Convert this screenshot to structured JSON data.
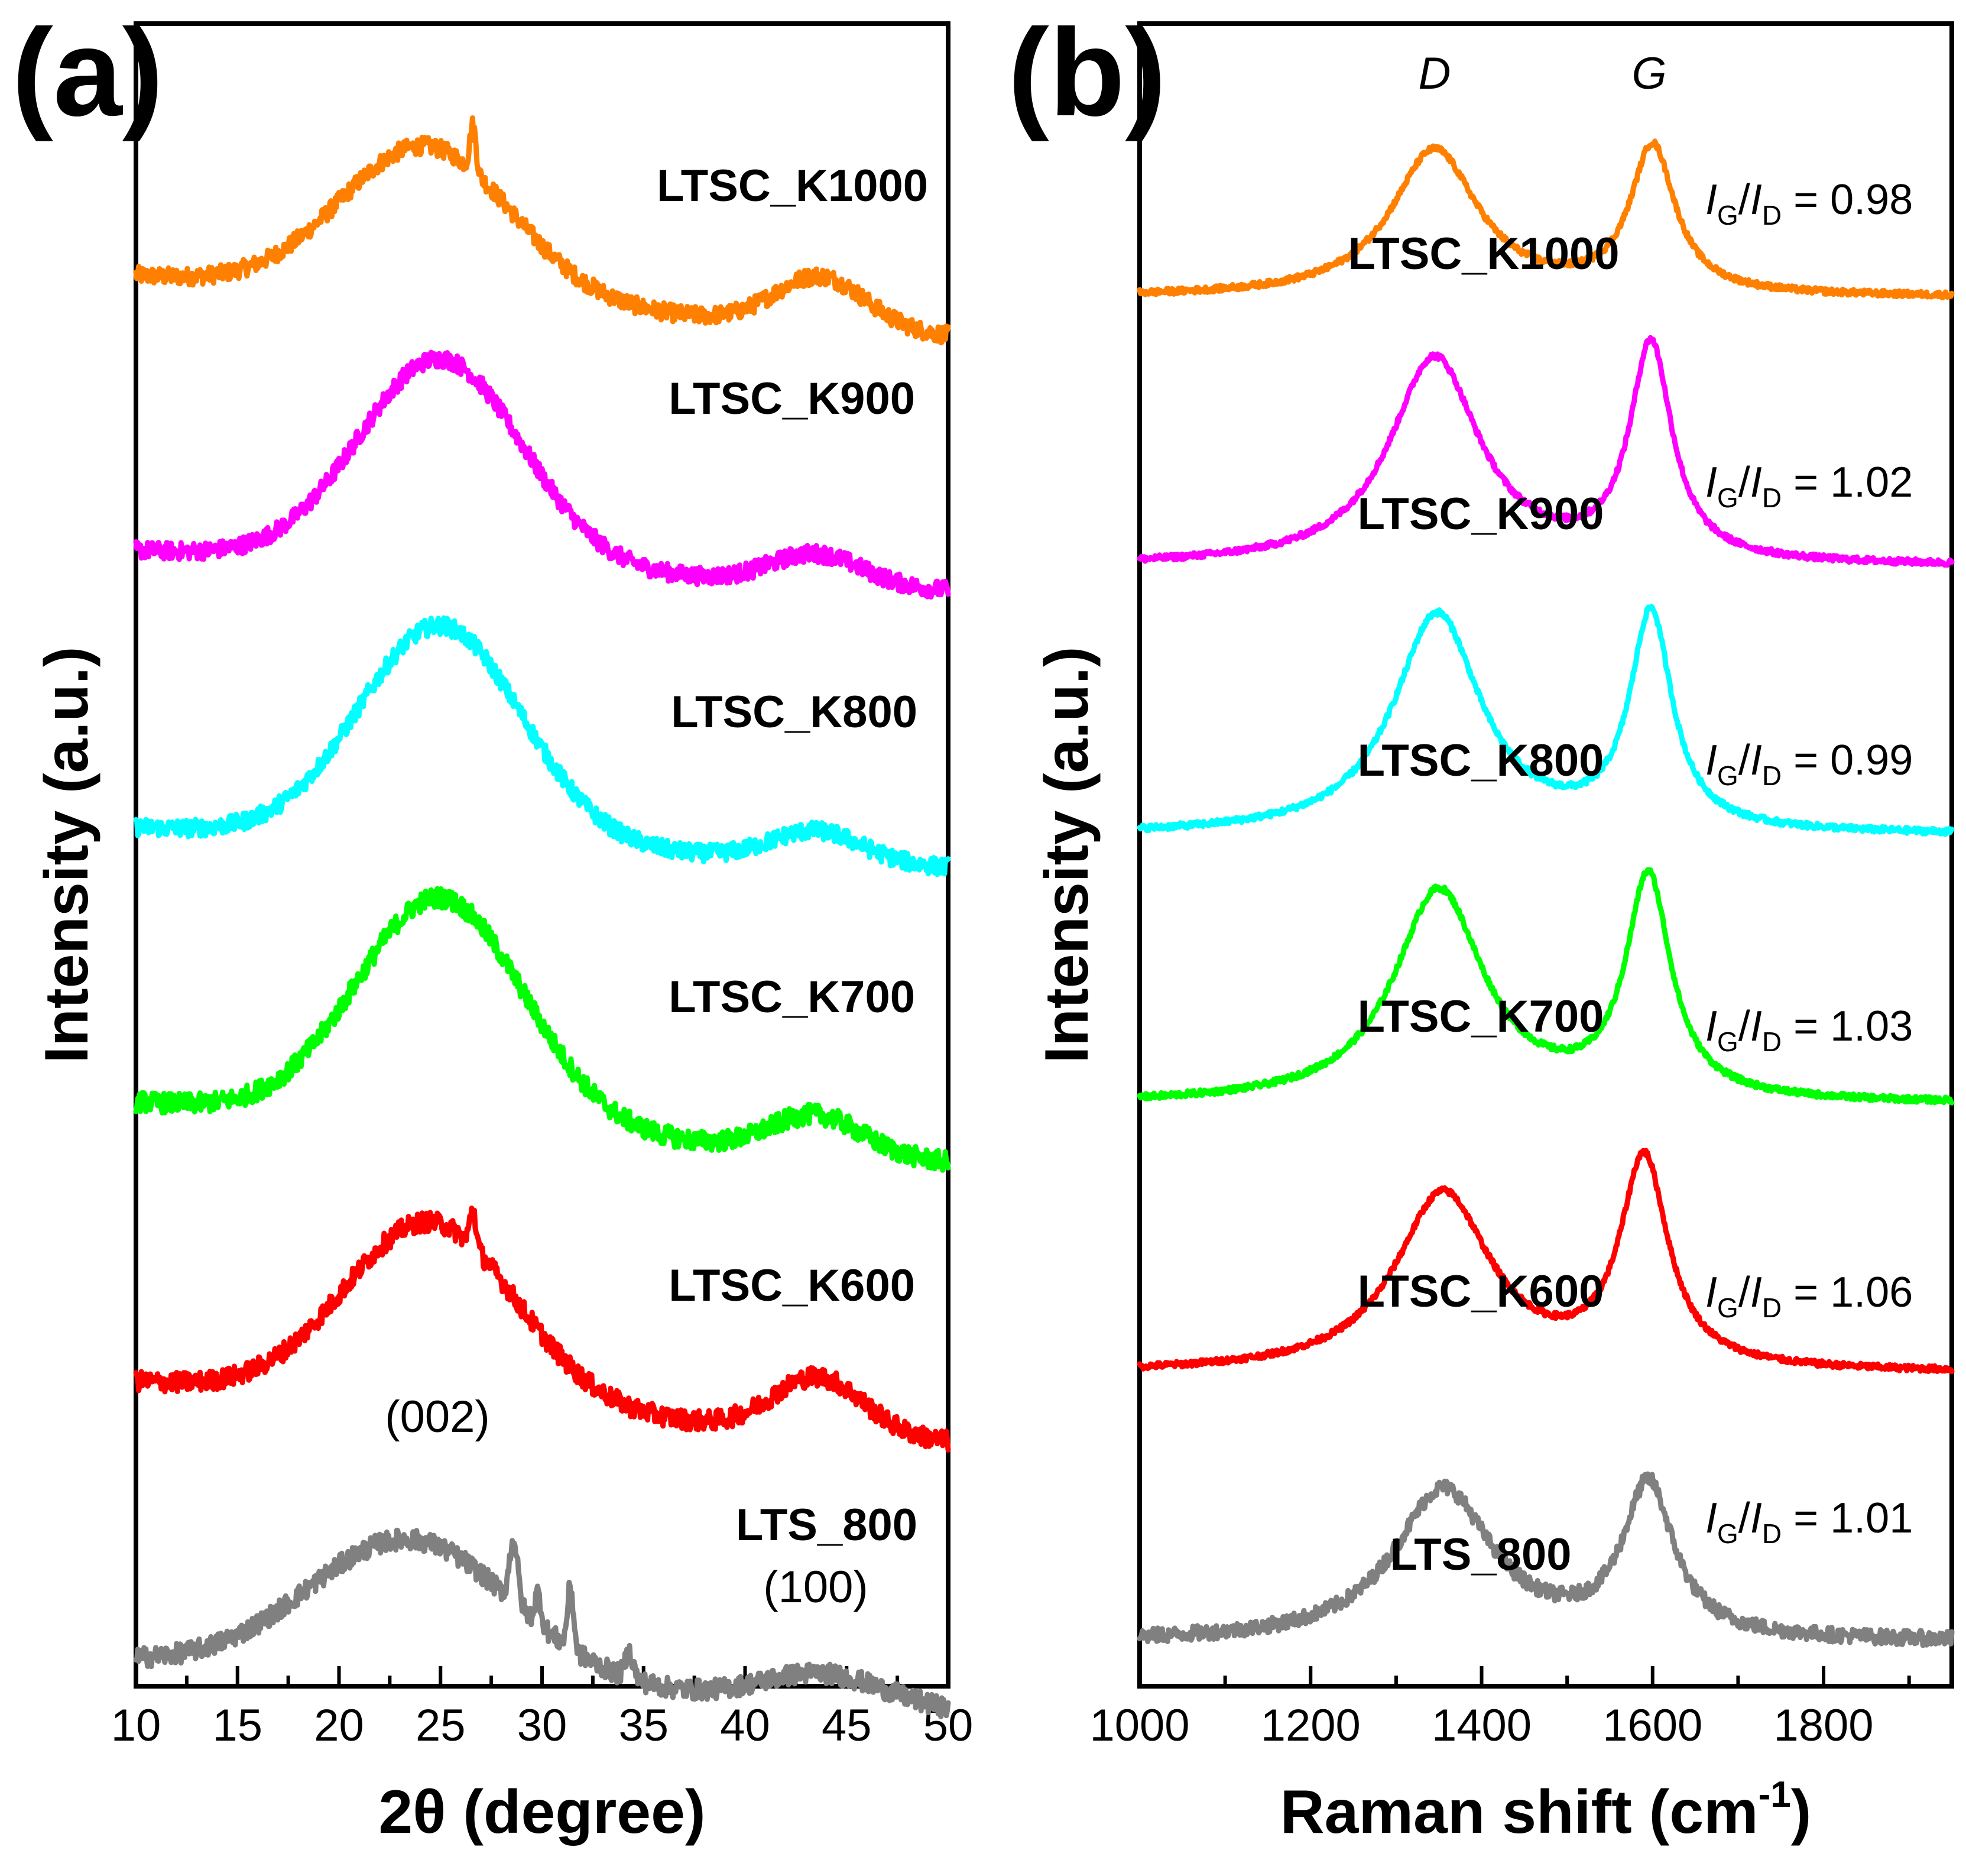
{
  "colors": {
    "LTSC_K1000": "#ff8000",
    "LTSC_K900": "#ff00ff",
    "LTSC_K800": "#00ffff",
    "LTSC_K700": "#00ff00",
    "LTSC_K600": "#ff0000",
    "LTS_800": "#808080"
  },
  "chart_data": [
    {
      "panel": "(a)",
      "type": "line",
      "title": "",
      "xlabel": "2θ (degree)",
      "ylabel": "Intensity (a.u.)",
      "xlim": [
        10,
        50
      ],
      "ylim": [
        0,
        6.6
      ],
      "xticks": [
        10,
        15,
        20,
        25,
        30,
        35,
        40,
        45,
        50
      ],
      "xtick_labels": [
        "10",
        "15",
        "20",
        "25",
        "30",
        "35",
        "40",
        "45",
        "50"
      ],
      "legend": "inline labels at right of each curve",
      "annotations": [
        {
          "text": "(002)",
          "x": 25.5,
          "y": 1.25
        },
        {
          "text": "(100)",
          "x": 43.8,
          "y": 0.35
        }
      ],
      "series": [
        {
          "name": "LTSC_K1000",
          "offset": 5.55,
          "base": 0.05,
          "peaks": [
            [
              24.3,
              0.6,
              4.2
            ],
            [
              43.7,
              0.2,
              2.2
            ]
          ],
          "slope": -0.006,
          "noise": 0.035,
          "spikes": [
            [
              26.6,
              0.18,
              0.15
            ]
          ]
        },
        {
          "name": "LTSC_K900",
          "offset": 4.45,
          "base": 0.06,
          "peaks": [
            [
              25.0,
              0.82,
              4.0
            ],
            [
              43.5,
              0.12,
              2.2
            ]
          ],
          "slope": -0.004,
          "noise": 0.035,
          "spikes": []
        },
        {
          "name": "LTSC_K800",
          "offset": 3.35,
          "base": 0.06,
          "peaks": [
            [
              25.0,
              0.86,
              4.0
            ],
            [
              43.5,
              0.12,
              2.2
            ]
          ],
          "slope": -0.004,
          "noise": 0.035,
          "spikes": []
        },
        {
          "name": "LTSC_K700",
          "offset": 2.25,
          "base": 0.07,
          "peaks": [
            [
              25.0,
              0.9,
              4.1
            ],
            [
              43.5,
              0.15,
              2.2
            ]
          ],
          "slope": -0.006,
          "noise": 0.04,
          "spikes": []
        },
        {
          "name": "LTSC_K600",
          "offset": 1.15,
          "base": 0.06,
          "peaks": [
            [
              24.5,
              0.72,
              4.2
            ],
            [
              43.6,
              0.22,
              2.2
            ]
          ],
          "slope": -0.006,
          "noise": 0.04,
          "spikes": [
            [
              26.6,
              0.15,
              0.15
            ]
          ]
        },
        {
          "name": "LTS_800",
          "offset": 0.05,
          "base": 0.05,
          "peaks": [
            [
              23.5,
              0.55,
              5.0
            ],
            [
              43.8,
              0.12,
              3.0
            ]
          ],
          "slope": -0.005,
          "noise": 0.04,
          "spikes": [
            [
              28.6,
              0.25,
              0.2
            ],
            [
              29.8,
              0.12,
              0.15
            ],
            [
              31.4,
              0.24,
              0.15
            ],
            [
              34.3,
              0.1,
              0.2
            ]
          ]
        }
      ]
    },
    {
      "panel": "(b)",
      "type": "line",
      "title": "",
      "xlabel": "Raman shift (cm",
      "xlabel_sup": "-1",
      "xlabel_end": ")",
      "ylabel": "Intensity (a.u.)",
      "xlim": [
        1000,
        1950
      ],
      "ylim": [
        0,
        6.8
      ],
      "xticks": [
        1000,
        1200,
        1400,
        1600,
        1800
      ],
      "xtick_labels": [
        "1000",
        "1200",
        "1400",
        "1600",
        "1800"
      ],
      "legend": "inline labels beside each curve",
      "annotations": [
        {
          "text": "D",
          "x": 1350
        },
        {
          "text": "G",
          "x": 1600
        }
      ],
      "ratio_label": {
        "main1": "I",
        "sub1": "G",
        "sep": "/",
        "main2": "I",
        "sub2": "D",
        "eq": " = "
      },
      "series": [
        {
          "name": "LTSC_K1000",
          "ratio": "0.98",
          "offset": 5.62,
          "base": 0.06,
          "D": [
            1345,
            0.6,
            62
          ],
          "G": [
            1600,
            0.6,
            32
          ],
          "noise": 0.012
        },
        {
          "name": "LTSC_K900",
          "ratio": "1.02",
          "offset": 4.52,
          "base": 0.06,
          "D": [
            1345,
            0.85,
            64
          ],
          "G": [
            1598,
            0.88,
            30
          ],
          "noise": 0.012
        },
        {
          "name": "LTSC_K800",
          "ratio": "0.99",
          "offset": 3.42,
          "base": 0.06,
          "D": [
            1348,
            0.9,
            62
          ],
          "G": [
            1598,
            0.88,
            30
          ],
          "noise": 0.012
        },
        {
          "name": "LTSC_K700",
          "ratio": "1.03",
          "offset": 2.32,
          "base": 0.06,
          "D": [
            1350,
            0.87,
            64
          ],
          "G": [
            1595,
            0.9,
            32
          ],
          "noise": 0.012
        },
        {
          "name": "LTSC_K600",
          "ratio": "1.06",
          "offset": 1.22,
          "base": 0.06,
          "D": [
            1355,
            0.73,
            68
          ],
          "G": [
            1590,
            0.85,
            34
          ],
          "noise": 0.012
        },
        {
          "name": "LTS_800",
          "ratio": "1.01",
          "offset": 0.12,
          "base": 0.06,
          "D": [
            1355,
            0.62,
            70
          ],
          "G": [
            1595,
            0.62,
            36
          ],
          "noise": 0.03
        }
      ]
    }
  ]
}
